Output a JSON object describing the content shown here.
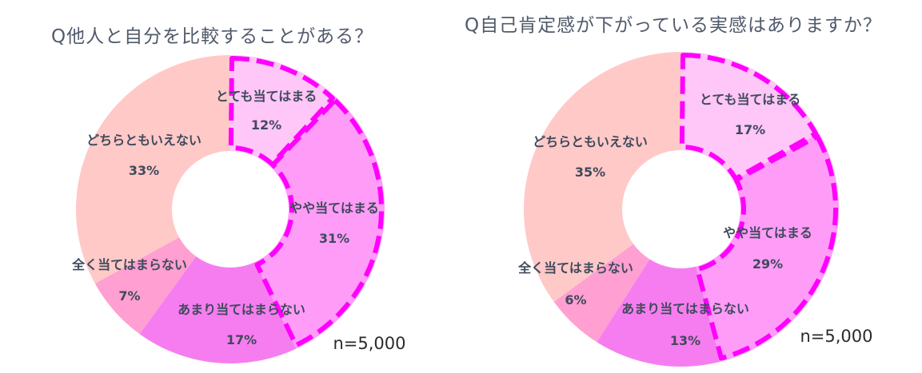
{
  "chart_data": [
    {
      "type": "pie",
      "title": "Q他人と自分を比較することがある？",
      "note": "n=5,000",
      "slices": [
        {
          "label": "とても当てはまる",
          "value": 12,
          "value_label": "12%",
          "color": "#ffc6f8",
          "highlight": true
        },
        {
          "label": "やや当てはまる",
          "value": 31,
          "value_label": "31%",
          "color": "#ff9cf8",
          "highlight": true
        },
        {
          "label": "あまり当てはまらない",
          "value": 17,
          "value_label": "17%",
          "color": "#f67df0",
          "highlight": false
        },
        {
          "label": "全く当てはまらない",
          "value": 7,
          "value_label": "7%",
          "color": "#ff9fd2",
          "highlight": false
        },
        {
          "label": "どちらともいえない",
          "value": 33,
          "value_label": "33%",
          "color": "#ffc9c8",
          "highlight": false
        }
      ]
    },
    {
      "type": "pie",
      "title": "Q自己肯定感が下がっている実感はありますか？",
      "note": "n=5,000",
      "slices": [
        {
          "label": "とても当てはまる",
          "value": 17,
          "value_label": "17%",
          "color": "#ffc6f8",
          "highlight": true
        },
        {
          "label": "やや当てはまる",
          "value": 29,
          "value_label": "29%",
          "color": "#ff9cf8",
          "highlight": true
        },
        {
          "label": "あまり当てはまらない",
          "value": 13,
          "value_label": "13%",
          "color": "#f67df0",
          "highlight": false
        },
        {
          "label": "全く当てはまらない",
          "value": 6,
          "value_label": "6%",
          "color": "#ff9fd2",
          "highlight": false
        },
        {
          "label": "どちらともいえない",
          "value": 35,
          "value_label": "35%",
          "color": "#ffc9c8",
          "highlight": false
        }
      ]
    }
  ],
  "highlight_color": "#ff00ff"
}
